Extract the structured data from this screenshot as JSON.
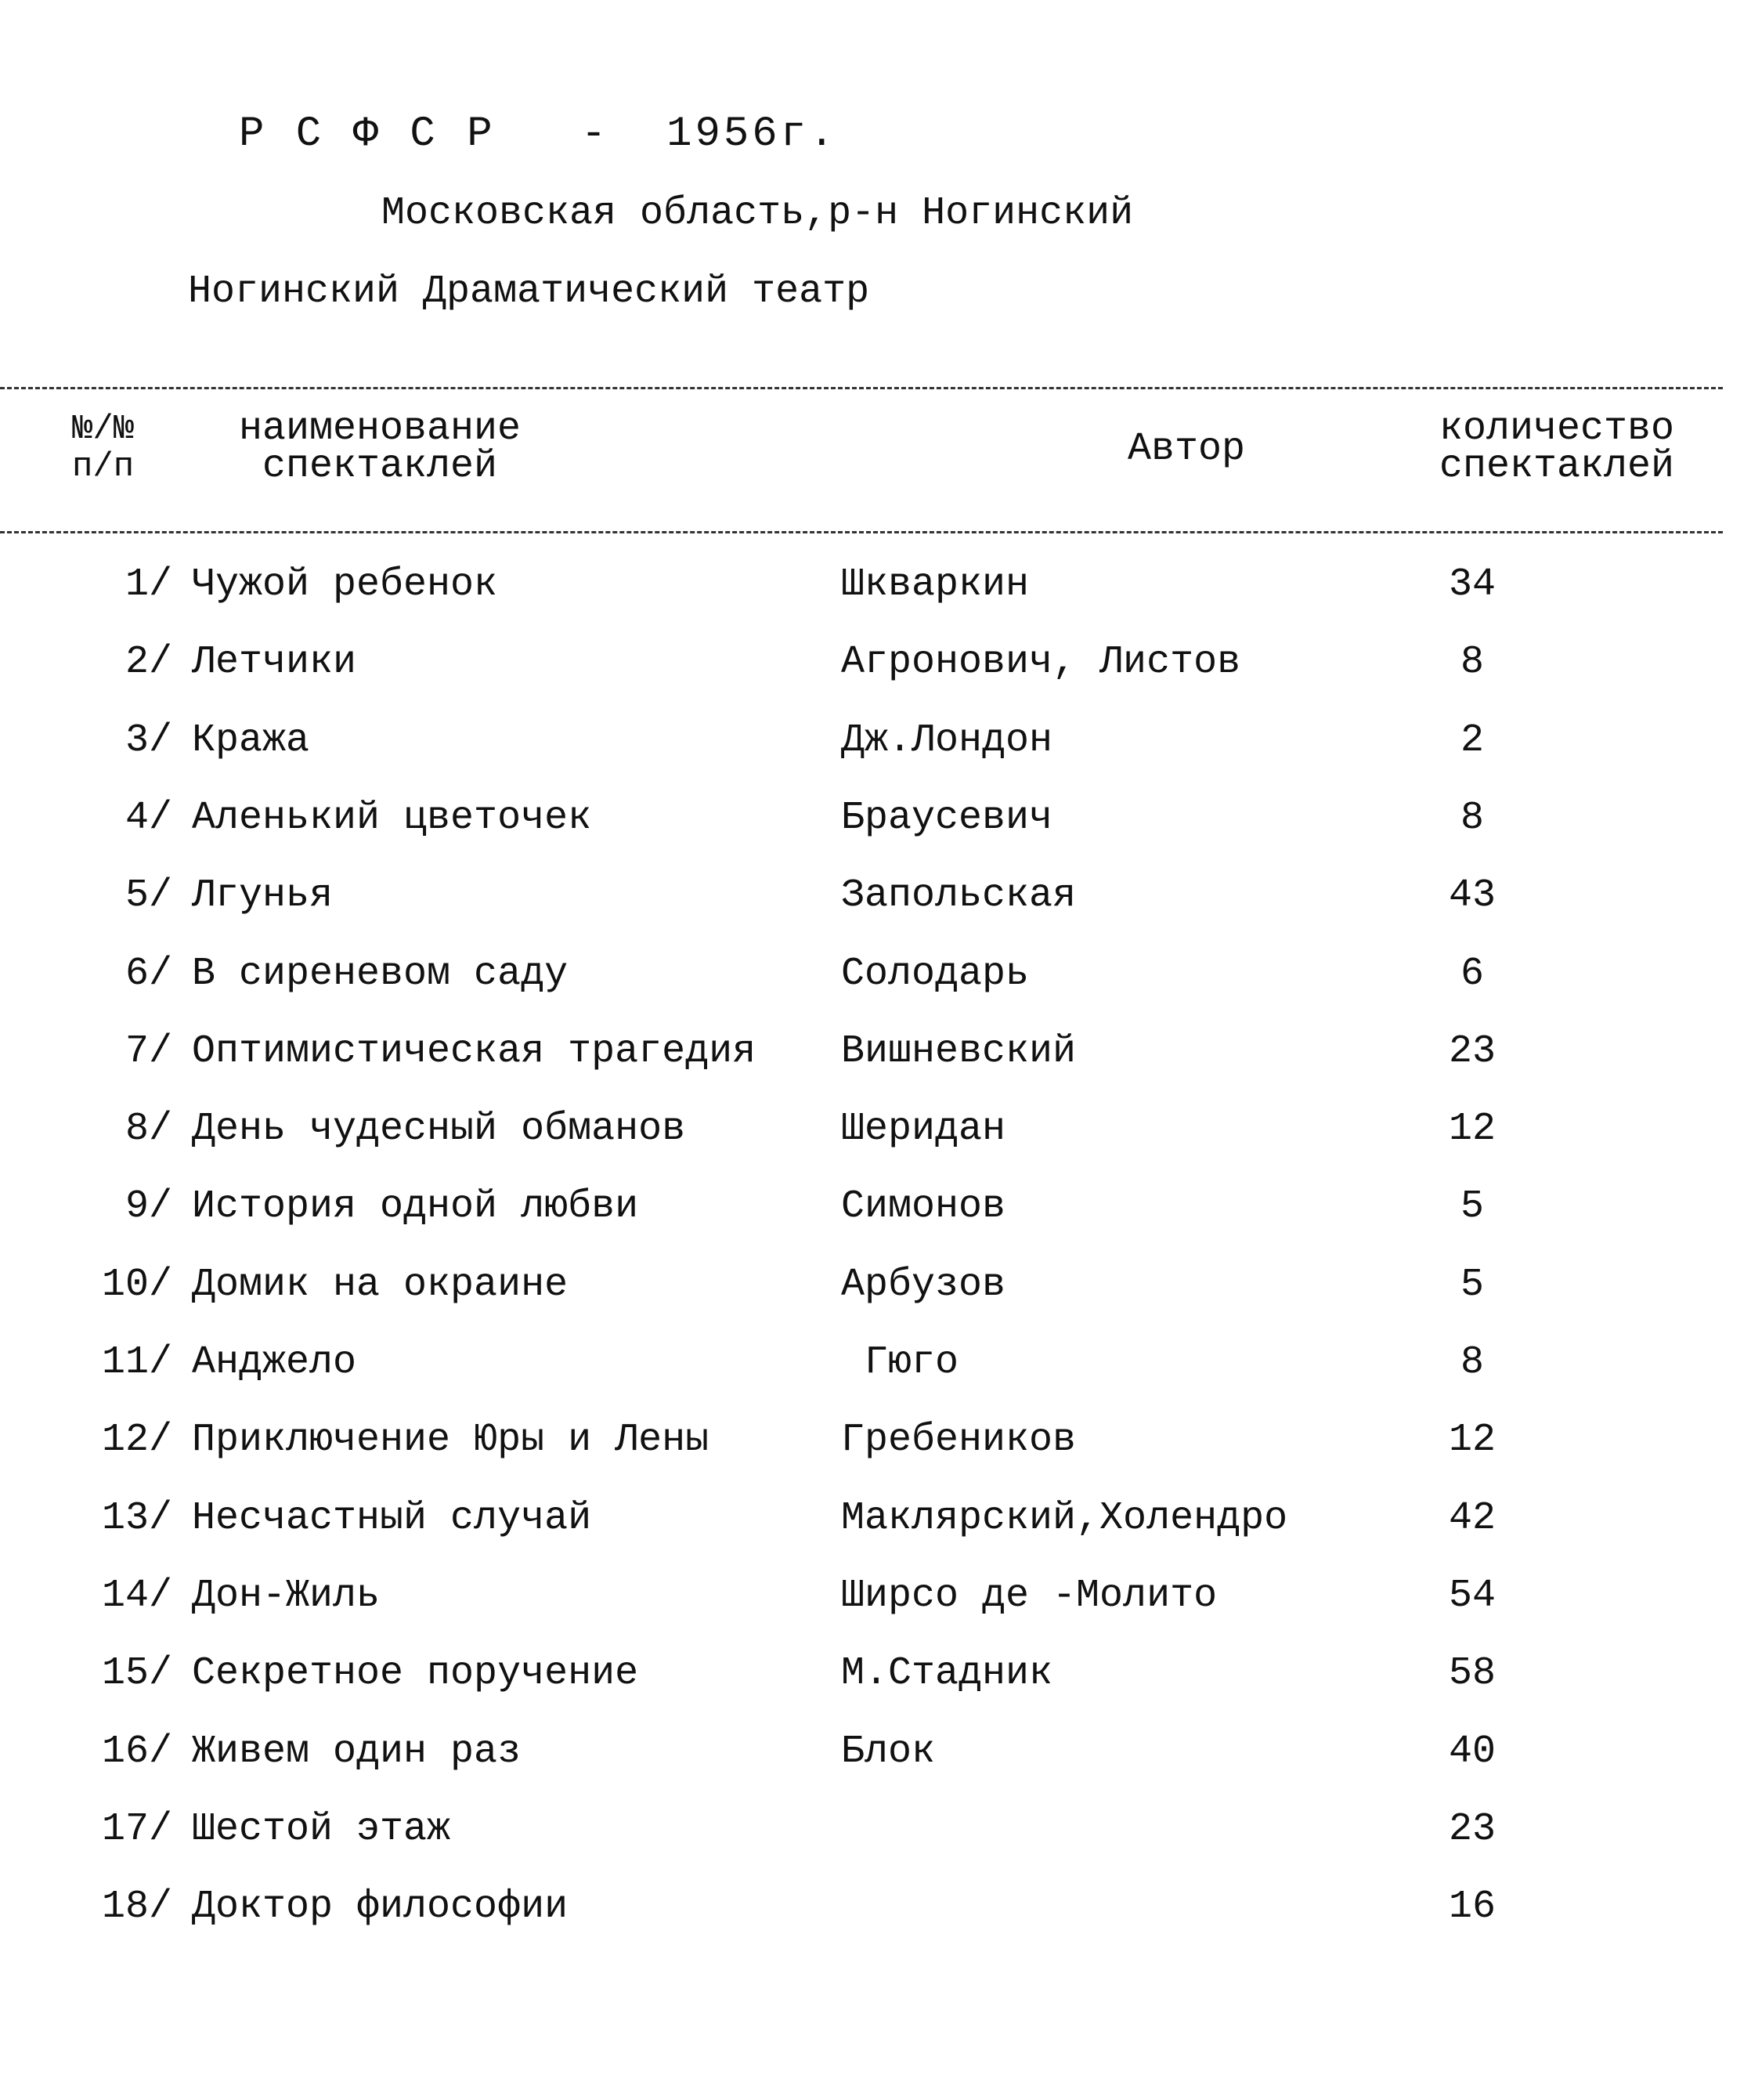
{
  "header": {
    "republic_year": "Р С Ф С Р   -  1956г.",
    "region": "Московская область,р-н  Ногинский",
    "theatre": "Ногинский Драматический театр"
  },
  "table": {
    "columns": {
      "num_line1": "№/№",
      "num_line2": "п/п",
      "title_line1": "наименование",
      "title_line2": "спектаклей",
      "author": "Автор",
      "count_line1": "количество",
      "count_line2": "спектаклей"
    },
    "rows": [
      {
        "num": "1/",
        "title": "Чужой ребенок",
        "author": "Шкваркин",
        "count": "34"
      },
      {
        "num": "2/",
        "title": "Летчики",
        "author": "Агронович, Листов",
        "count": "8"
      },
      {
        "num": "3/",
        "title": "Кража",
        "author": "Дж.Лондон",
        "count": "2"
      },
      {
        "num": "4/",
        "title": "Аленький цветочек",
        "author": "Браусевич",
        "count": "8"
      },
      {
        "num": "5/",
        "title": "Лгунья",
        "author": "Запольская",
        "count": "43"
      },
      {
        "num": "6/",
        "title": "В сиреневом саду",
        "author": "Солодарь",
        "count": "6"
      },
      {
        "num": "7/",
        "title": "Оптимистическая трагедия",
        "author": "Вишневский",
        "count": "23"
      },
      {
        "num": "8/",
        "title": "День чудесный обманов",
        "author": "Шеридан",
        "count": "12"
      },
      {
        "num": "9/",
        "title": "История одной любви",
        "author": "Симонов",
        "count": "5"
      },
      {
        "num": "10/",
        "title": "Домик на окраине",
        "author": "Арбузов",
        "count": "5"
      },
      {
        "num": "11/",
        "title": "Анджело",
        "author": " Гюго",
        "count": "8"
      },
      {
        "num": "12/",
        "title": "Приключение Юры и Лены",
        "author": "Гребеников",
        "count": "12"
      },
      {
        "num": "13/",
        "title": "Несчастный случай",
        "author": "Маклярский,Холендро",
        "count": "42"
      },
      {
        "num": "14/",
        "title": "Дон-Жиль",
        "author": "Ширсо де -Молито",
        "count": "54"
      },
      {
        "num": "15/",
        "title": "Секретное поручение",
        "author": "М.Стадник",
        "count": "58"
      },
      {
        "num": "16/",
        "title": "Живем один раз",
        "author": "Блок",
        "count": "40"
      },
      {
        "num": "17/",
        "title": "Шестой этаж",
        "author": "",
        "count": "23"
      },
      {
        "num": "18/",
        "title": "Доктор философии",
        "author": "",
        "count": "16"
      }
    ]
  }
}
